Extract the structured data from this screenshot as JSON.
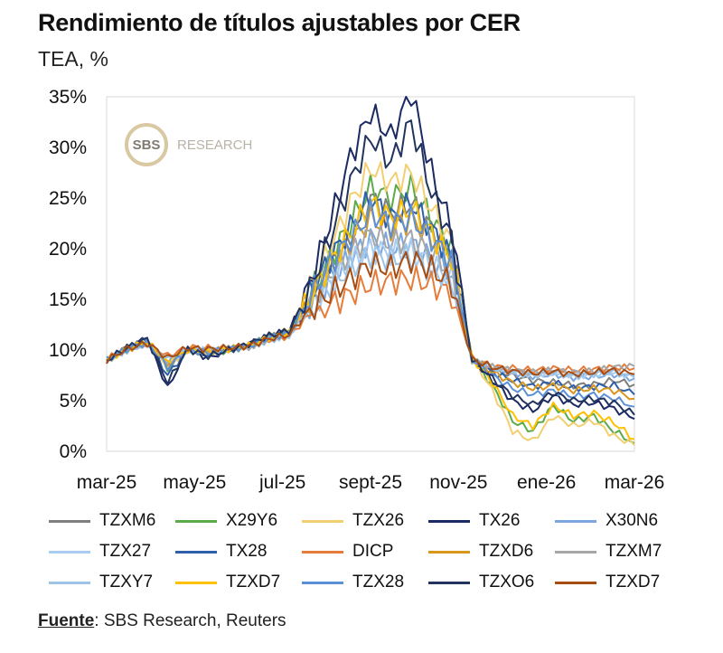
{
  "chart_data": {
    "type": "line",
    "title": "Rendimiento de títulos ajustables por CER",
    "ylabel": "TEA, %",
    "ylim": [
      0,
      35
    ],
    "yticks": [
      "0%",
      "5%",
      "10%",
      "15%",
      "20%",
      "25%",
      "30%",
      "35%"
    ],
    "xticks": [
      "mar-25",
      "may-25",
      "jul-25",
      "sept-25",
      "nov-25",
      "ene-26",
      "mar-26"
    ],
    "x": [
      "mar-25",
      "mar-25b",
      "abr-25",
      "abr-25b",
      "may-25",
      "may-25b",
      "jun-25",
      "jun-25b",
      "jul-25",
      "jul-25b",
      "ago-25",
      "ago-25b",
      "sept-25",
      "sept-25b",
      "sept-25c",
      "oct-25",
      "oct-25b",
      "oct-25c",
      "nov-25",
      "nov-25b",
      "dic-25",
      "dic-25b",
      "ene-26",
      "ene-26b",
      "feb-26",
      "feb-26b",
      "mar-26"
    ],
    "xlabel": "",
    "grid": false,
    "series": [
      {
        "name": "TZXM6",
        "color": "#7f7f7f",
        "values": [
          9.0,
          10.3,
          10.8,
          8.5,
          10.0,
          9.8,
          10.1,
          10.4,
          11.2,
          11.6,
          15.0,
          18.5,
          21.0,
          25.0,
          23.5,
          24.5,
          22.0,
          19.5,
          9.0,
          8.0,
          7.5,
          7.0,
          6.8,
          6.5,
          6.6,
          7.0,
          6.6
        ]
      },
      {
        "name": "X29Y6",
        "color": "#5daa4a",
        "values": [
          9.0,
          10.0,
          10.7,
          8.2,
          10.0,
          9.6,
          10.0,
          10.4,
          11.3,
          11.8,
          15.5,
          19.0,
          22.5,
          26.0,
          25.0,
          26.0,
          23.0,
          20.0,
          9.2,
          6.5,
          3.0,
          2.0,
          4.5,
          3.0,
          3.5,
          2.0,
          0.8
        ]
      },
      {
        "name": "TZX26",
        "color": "#f1cf72",
        "values": [
          9.0,
          10.1,
          10.9,
          8.4,
          10.1,
          9.7,
          10.1,
          10.5,
          11.4,
          12.0,
          16.0,
          20.0,
          24.5,
          28.0,
          26.5,
          27.5,
          24.0,
          20.5,
          9.3,
          6.0,
          2.0,
          1.0,
          3.5,
          2.5,
          3.0,
          1.5,
          0.6
        ]
      },
      {
        "name": "TX26",
        "color": "#1b2a63",
        "values": [
          9.0,
          10.2,
          11.2,
          6.2,
          10.2,
          9.2,
          10.0,
          10.6,
          11.4,
          11.9,
          16.5,
          22.5,
          29.0,
          33.5,
          31.0,
          35.5,
          27.5,
          22.0,
          9.1,
          7.0,
          5.0,
          4.0,
          5.5,
          4.6,
          4.8,
          4.2,
          3.2
        ]
      },
      {
        "name": "X30N6",
        "color": "#7ba7de",
        "values": [
          9.0,
          10.1,
          10.6,
          8.8,
          9.9,
          9.9,
          10.1,
          10.3,
          11.1,
          11.5,
          14.5,
          17.0,
          19.0,
          21.0,
          20.0,
          20.5,
          19.0,
          17.5,
          9.0,
          8.2,
          7.8,
          7.4,
          7.6,
          7.3,
          7.4,
          7.6,
          7.2
        ]
      },
      {
        "name": "TZX27",
        "color": "#a9cdf0",
        "values": [
          9.0,
          10.0,
          10.6,
          9.0,
          9.9,
          10.0,
          10.1,
          10.3,
          11.0,
          11.5,
          14.0,
          16.5,
          18.5,
          20.0,
          19.5,
          19.8,
          18.5,
          17.0,
          9.0,
          8.3,
          7.9,
          7.6,
          7.8,
          7.5,
          7.6,
          7.8,
          7.4
        ]
      },
      {
        "name": "TX28",
        "color": "#2f5fa8",
        "values": [
          9.0,
          10.2,
          11.0,
          7.5,
          10.1,
          9.5,
          10.0,
          10.5,
          11.3,
          11.8,
          15.5,
          19.0,
          22.0,
          25.0,
          23.0,
          24.5,
          22.0,
          19.0,
          9.1,
          7.8,
          7.0,
          6.4,
          6.8,
          6.2,
          6.4,
          6.5,
          5.6
        ]
      },
      {
        "name": "DICP",
        "color": "#e67c3a",
        "values": [
          9.1,
          10.1,
          10.6,
          9.4,
          10.3,
          10.2,
          10.2,
          10.4,
          11.0,
          11.4,
          13.5,
          14.5,
          15.5,
          16.5,
          16.8,
          17.0,
          16.5,
          15.5,
          9.2,
          8.4,
          8.2,
          8.0,
          8.2,
          8.0,
          8.1,
          8.3,
          8.2
        ]
      },
      {
        "name": "TZXD6",
        "color": "#d9961c",
        "values": [
          9.0,
          10.1,
          10.8,
          8.6,
          10.0,
          9.8,
          10.1,
          10.4,
          11.2,
          11.7,
          15.0,
          18.0,
          20.5,
          23.0,
          22.0,
          23.0,
          21.0,
          18.5,
          9.1,
          7.8,
          6.8,
          6.2,
          6.5,
          6.0,
          6.2,
          6.0,
          5.2
        ]
      },
      {
        "name": "TZXM7",
        "color": "#a6a6a6",
        "values": [
          9.0,
          10.0,
          10.7,
          8.9,
          9.9,
          9.9,
          10.1,
          10.3,
          11.1,
          11.5,
          14.5,
          17.5,
          19.5,
          21.5,
          20.5,
          21.0,
          19.5,
          17.8,
          9.0,
          8.3,
          8.0,
          7.8,
          8.0,
          7.8,
          7.9,
          8.3,
          8.4
        ]
      },
      {
        "name": "TZXY7",
        "color": "#9dc3e6",
        "values": [
          9.0,
          10.0,
          10.6,
          9.1,
          9.9,
          10.0,
          10.1,
          10.3,
          11.0,
          11.4,
          14.0,
          16.5,
          18.0,
          19.5,
          19.0,
          19.2,
          18.0,
          16.8,
          9.0,
          8.2,
          7.8,
          7.5,
          7.7,
          7.4,
          7.6,
          7.8,
          7.3
        ]
      },
      {
        "name": "TZXD7",
        "color": "#ffc000",
        "values": [
          9.0,
          10.1,
          10.8,
          8.7,
          10.0,
          9.8,
          10.1,
          10.4,
          11.2,
          11.7,
          15.0,
          18.5,
          21.5,
          24.5,
          23.0,
          24.0,
          21.5,
          19.0,
          9.2,
          6.8,
          3.5,
          2.5,
          4.5,
          3.5,
          3.8,
          2.8,
          1.2
        ]
      },
      {
        "name": "TZX28",
        "color": "#5b8fd6",
        "values": [
          9.0,
          10.1,
          10.8,
          8.3,
          10.0,
          9.7,
          10.1,
          10.4,
          11.2,
          11.7,
          15.2,
          18.5,
          21.0,
          23.5,
          22.5,
          23.0,
          21.0,
          18.8,
          9.1,
          7.5,
          6.2,
          5.6,
          6.0,
          5.4,
          5.6,
          5.2,
          4.4
        ]
      },
      {
        "name": "TZXO6",
        "color": "#22345e",
        "values": [
          9.0,
          10.2,
          11.1,
          6.8,
          10.1,
          9.4,
          10.0,
          10.6,
          11.4,
          11.9,
          16.0,
          21.0,
          26.5,
          31.0,
          28.5,
          32.5,
          25.5,
          21.0,
          9.1,
          7.2,
          5.5,
          4.6,
          5.8,
          5.0,
          5.2,
          4.8,
          3.6
        ]
      },
      {
        "name": "TZXD7",
        "color": "#a64d14",
        "values": [
          9.0,
          10.1,
          10.7,
          9.2,
          10.2,
          10.1,
          10.2,
          10.4,
          11.1,
          11.5,
          14.0,
          15.5,
          17.0,
          18.5,
          18.0,
          19.0,
          18.0,
          16.5,
          9.1,
          8.3,
          7.9,
          7.7,
          7.9,
          7.6,
          7.8,
          8.0,
          7.6
        ]
      }
    ]
  },
  "watermark": {
    "logo": "SBS",
    "text": "RESEARCH"
  },
  "source": {
    "label": "Fuente",
    "text": ": SBS Research, Reuters"
  }
}
